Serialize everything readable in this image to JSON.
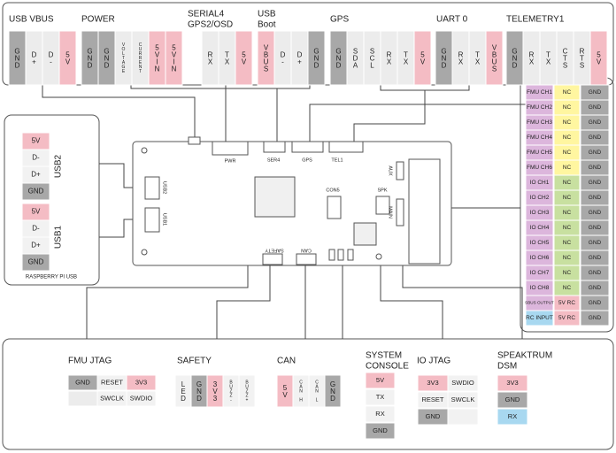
{
  "top": {
    "groups": [
      {
        "title": [
          "USB VBUS"
        ],
        "pins": [
          {
            "label": "GND",
            "color": "#a8a8a8"
          },
          {
            "label": "D+",
            "color": "#ececec"
          },
          {
            "label": "D-",
            "color": "#ececec"
          },
          {
            "label": "5V",
            "color": "#f4bcc4"
          }
        ]
      },
      {
        "title": [
          "POWER"
        ],
        "pins": [
          {
            "label": "GND",
            "color": "#a8a8a8"
          },
          {
            "label": "GND",
            "color": "#a8a8a8"
          },
          {
            "label": "VOLTAGE",
            "color": "#ececec"
          },
          {
            "label": "CURRENT",
            "color": "#ececec"
          },
          {
            "label": "5VIN",
            "color": "#f4bcc4"
          },
          {
            "label": "5VIN",
            "color": "#f4bcc4"
          }
        ]
      },
      {
        "title": [
          "SERIAL4",
          "GPS2/OSD"
        ],
        "pins": [
          {
            "label": "RX",
            "color": "#ececec"
          },
          {
            "label": "TX",
            "color": "#ececec"
          },
          {
            "label": "5V",
            "color": "#f4bcc4"
          }
        ]
      },
      {
        "title": [
          "USB",
          "Boot"
        ],
        "pins": [
          {
            "label": "VBUS",
            "color": "#f4bcc4"
          },
          {
            "label": "D-",
            "color": "#ececec"
          },
          {
            "label": "D+",
            "color": "#ececec"
          },
          {
            "label": "GND",
            "color": "#a8a8a8"
          }
        ]
      },
      {
        "title": [
          "GPS"
        ],
        "pins": [
          {
            "label": "GND",
            "color": "#a8a8a8"
          },
          {
            "label": "SDA",
            "color": "#ececec"
          },
          {
            "label": "SCL",
            "color": "#ececec"
          },
          {
            "label": "RX",
            "color": "#ececec"
          },
          {
            "label": "TX",
            "color": "#ececec"
          },
          {
            "label": "5V",
            "color": "#f4bcc4"
          }
        ]
      },
      {
        "title": [
          "UART 0"
        ],
        "pins": [
          {
            "label": "GND",
            "color": "#a8a8a8"
          },
          {
            "label": "RX",
            "color": "#ececec"
          },
          {
            "label": "TX",
            "color": "#ececec"
          },
          {
            "label": "VBUS",
            "color": "#f4bcc4"
          }
        ]
      },
      {
        "title": [
          "TELEMETRY1"
        ],
        "pins": [
          {
            "label": "GND",
            "color": "#a8a8a8"
          },
          {
            "label": "RX",
            "color": "#ececec"
          },
          {
            "label": "TX",
            "color": "#ececec"
          },
          {
            "label": "CTS",
            "color": "#ececec"
          },
          {
            "label": "RTS",
            "color": "#ececec"
          },
          {
            "label": "5V",
            "color": "#f4bcc4"
          }
        ]
      }
    ]
  },
  "left": {
    "groups": [
      {
        "label": "USB2",
        "pins": [
          {
            "label": "5V",
            "color": "#f4bcc4"
          },
          {
            "label": "D-",
            "color": "#f2f2f2"
          },
          {
            "label": "D+",
            "color": "#f2f2f2"
          },
          {
            "label": "GND",
            "color": "#a8a8a8"
          }
        ]
      },
      {
        "label": "USB1",
        "pins": [
          {
            "label": "5V",
            "color": "#f4bcc4"
          },
          {
            "label": "D-",
            "color": "#f2f2f2"
          },
          {
            "label": "D+",
            "color": "#f2f2f2"
          },
          {
            "label": "GND",
            "color": "#a8a8a8"
          }
        ]
      }
    ],
    "footer": "RASPBERRY PI USB"
  },
  "right": {
    "rows": [
      [
        {
          "label": "FMU CH1",
          "color": "#dcb6dc"
        },
        {
          "label": "NC",
          "color": "#fff6a0"
        },
        {
          "label": "GND",
          "color": "#a8a8a8"
        }
      ],
      [
        {
          "label": "FMU CH2",
          "color": "#dcb6dc"
        },
        {
          "label": "NC",
          "color": "#fff6a0"
        },
        {
          "label": "GND",
          "color": "#a8a8a8"
        }
      ],
      [
        {
          "label": "FMU CH3",
          "color": "#dcb6dc"
        },
        {
          "label": "NC",
          "color": "#fff6a0"
        },
        {
          "label": "GND",
          "color": "#a8a8a8"
        }
      ],
      [
        {
          "label": "FMU CH4",
          "color": "#dcb6dc"
        },
        {
          "label": "NC",
          "color": "#fff6a0"
        },
        {
          "label": "GND",
          "color": "#a8a8a8"
        }
      ],
      [
        {
          "label": "FMU CH5",
          "color": "#dcb6dc"
        },
        {
          "label": "NC",
          "color": "#fff6a0"
        },
        {
          "label": "GND",
          "color": "#a8a8a8"
        }
      ],
      [
        {
          "label": "FMU CH6",
          "color": "#dcb6dc"
        },
        {
          "label": "NC",
          "color": "#fff6a0"
        },
        {
          "label": "GND",
          "color": "#a8a8a8"
        }
      ],
      [
        {
          "label": "IO CH1",
          "color": "#dcb6dc"
        },
        {
          "label": "NC",
          "color": "#c8e0a0"
        },
        {
          "label": "GND",
          "color": "#a8a8a8"
        }
      ],
      [
        {
          "label": "IO CH2",
          "color": "#dcb6dc"
        },
        {
          "label": "NC",
          "color": "#c8e0a0"
        },
        {
          "label": "GND",
          "color": "#a8a8a8"
        }
      ],
      [
        {
          "label": "IO CH3",
          "color": "#dcb6dc"
        },
        {
          "label": "NC",
          "color": "#c8e0a0"
        },
        {
          "label": "GND",
          "color": "#a8a8a8"
        }
      ],
      [
        {
          "label": "IO CH4",
          "color": "#dcb6dc"
        },
        {
          "label": "NC",
          "color": "#c8e0a0"
        },
        {
          "label": "GND",
          "color": "#a8a8a8"
        }
      ],
      [
        {
          "label": "IO CH5",
          "color": "#dcb6dc"
        },
        {
          "label": "NC",
          "color": "#c8e0a0"
        },
        {
          "label": "GND",
          "color": "#a8a8a8"
        }
      ],
      [
        {
          "label": "IO CH6",
          "color": "#dcb6dc"
        },
        {
          "label": "NC",
          "color": "#c8e0a0"
        },
        {
          "label": "GND",
          "color": "#a8a8a8"
        }
      ],
      [
        {
          "label": "IO CH7",
          "color": "#dcb6dc"
        },
        {
          "label": "NC",
          "color": "#c8e0a0"
        },
        {
          "label": "GND",
          "color": "#a8a8a8"
        }
      ],
      [
        {
          "label": "IO CH8",
          "color": "#dcb6dc"
        },
        {
          "label": "NC",
          "color": "#c8e0a0"
        },
        {
          "label": "GND",
          "color": "#a8a8a8"
        }
      ],
      [
        {
          "label": "SBUS OUTPUT",
          "color": "#dcb6dc"
        },
        {
          "label": "5V RC",
          "color": "#f4bcc4"
        },
        {
          "label": "GND",
          "color": "#a8a8a8"
        }
      ],
      [
        {
          "label": "RC INPUT",
          "color": "#a8d8f0"
        },
        {
          "label": "5V RC",
          "color": "#f4bcc4"
        },
        {
          "label": "GND",
          "color": "#a8a8a8"
        }
      ]
    ]
  },
  "board": {
    "labels": [
      "PWR",
      "SER4",
      "GPS",
      "TEL1",
      "USB2",
      "USB1",
      "CON5",
      "SPK",
      "AUX",
      "MAIN",
      "SAFETY",
      "CAN"
    ]
  },
  "bottom": {
    "groups": [
      {
        "title": [
          "FMU JTAG"
        ],
        "rows": [
          [
            {
              "label": "GND",
              "color": "#a8a8a8"
            },
            {
              "label": "RESET",
              "color": "#f2f2f2"
            },
            {
              "label": "3V3",
              "color": "#f4bcc4"
            }
          ],
          [
            {
              "color": "#ececec"
            },
            {
              "label": "SWCLK",
              "color": "#f2f2f2"
            },
            {
              "label": "SWDIO",
              "color": "#f2f2f2"
            }
          ]
        ]
      },
      {
        "title": [
          "SAFETY"
        ],
        "rows": [
          [
            {
              "label": "LED",
              "color": "#f2f2f2"
            },
            {
              "label": "GND",
              "color": "#a8a8a8"
            },
            {
              "label": "3V3",
              "color": "#f4bcc4"
            },
            {
              "label": "BUZZ-",
              "color": "#f2f2f2"
            },
            {
              "label": "BUZZ+",
              "color": "#f2f2f2"
            }
          ]
        ]
      },
      {
        "title": [
          "CAN"
        ],
        "rows": [
          [
            {
              "label": "5V",
              "color": "#f4bcc4"
            },
            {
              "label": "CAN H",
              "color": "#f2f2f2"
            },
            {
              "label": "CAN L",
              "color": "#f2f2f2"
            },
            {
              "label": "GND",
              "color": "#a8a8a8"
            }
          ]
        ]
      },
      {
        "title": [
          "SYSTEM",
          "CONSOLE"
        ],
        "rows": [
          [
            {
              "label": "5V",
              "color": "#f4bcc4"
            }
          ],
          [
            {
              "label": "TX",
              "color": "#f2f2f2"
            }
          ],
          [
            {
              "label": "RX",
              "color": "#f2f2f2"
            }
          ],
          [
            {
              "label": "GND",
              "color": "#a8a8a8"
            }
          ]
        ]
      },
      {
        "title": [
          "IO JTAG"
        ],
        "rows": [
          [
            {
              "label": "3V3",
              "color": "#f4bcc4"
            },
            {
              "label": "SWDIO",
              "color": "#f2f2f2"
            }
          ],
          [
            {
              "label": "RESET",
              "color": "#f2f2f2"
            },
            {
              "label": "SWCLK",
              "color": "#f2f2f2"
            }
          ],
          [
            {
              "label": "GND",
              "color": "#a8a8a8"
            },
            {
              "color": "#f2f2f2"
            }
          ]
        ]
      },
      {
        "title": [
          "SPEAKTRUM",
          "DSM"
        ],
        "rows": [
          [
            {
              "label": "3V3",
              "color": "#f4bcc4"
            }
          ],
          [
            {
              "label": "GND",
              "color": "#a8a8a8"
            }
          ],
          [
            {
              "label": "RX",
              "color": "#a8d8f0"
            }
          ]
        ]
      }
    ]
  }
}
